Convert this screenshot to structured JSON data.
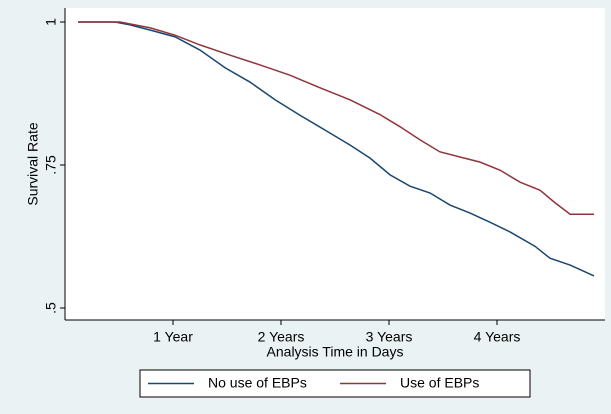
{
  "chart_data": {
    "type": "line",
    "y_label": "Survival Rate",
    "x_label": "Analysis Time in Days",
    "xlim": [
      0,
      1825
    ],
    "ylim": [
      0.479,
      1.0245
    ],
    "xticks": [
      {
        "value": 365,
        "label": "1 Year"
      },
      {
        "value": 730,
        "label": "2 Years"
      },
      {
        "value": 1095,
        "label": "3 Years"
      },
      {
        "value": 1460,
        "label": "4 Years"
      }
    ],
    "yticks": [
      {
        "value": 0.5,
        "label": ".5"
      },
      {
        "value": 0.75,
        "label": ".75"
      },
      1
    ],
    "series": [
      {
        "name": "No use of EBPs",
        "color": "#1a476f",
        "x": [
          44,
          169,
          220,
          287,
          372,
          456,
          541,
          625,
          710,
          794,
          879,
          963,
          1031,
          1098,
          1166,
          1234,
          1301,
          1369,
          1436,
          1504,
          1588,
          1639,
          1707,
          1788
        ],
        "values": [
          1,
          1,
          0.995,
          0.986,
          0.974,
          0.951,
          0.92,
          0.895,
          0.864,
          0.837,
          0.811,
          0.785,
          0.762,
          0.733,
          0.713,
          0.701,
          0.68,
          0.666,
          0.65,
          0.633,
          0.608,
          0.587,
          0.575,
          0.556
        ]
      },
      {
        "name": "Use of EBPs",
        "color": "#90353b",
        "x": [
          44,
          186,
          287,
          372,
          456,
          558,
          659,
          760,
          862,
          963,
          1065,
          1132,
          1200,
          1267,
          1335,
          1403,
          1470,
          1538,
          1605,
          1656,
          1707,
          1788
        ],
        "values": [
          1,
          1,
          0.99,
          0.977,
          0.96,
          0.942,
          0.925,
          0.907,
          0.885,
          0.864,
          0.838,
          0.817,
          0.794,
          0.773,
          0.764,
          0.755,
          0.741,
          0.72,
          0.706,
          0.684,
          0.664,
          0.664
        ]
      }
    ]
  }
}
